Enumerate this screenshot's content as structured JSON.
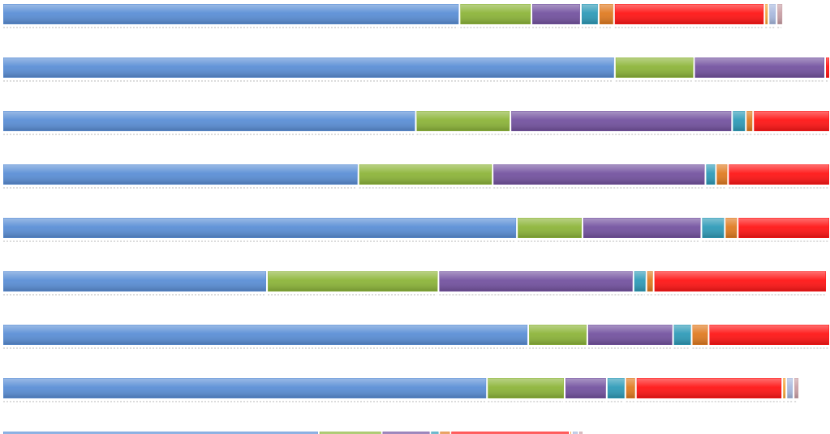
{
  "chart_data": {
    "type": "bar",
    "orientation": "horizontal",
    "stacked": true,
    "title": "",
    "xlabel": "",
    "ylabel": "",
    "xlim": [
      0,
      1023
    ],
    "grid": false,
    "legend": "none",
    "categories": [
      "",
      "",
      "",
      "",
      "",
      "",
      "",
      "",
      ""
    ],
    "series": [
      {
        "color": "#5b8fd6",
        "values": [
          565,
          757,
          511,
          440,
          636,
          327,
          650,
          599,
          391
        ]
      },
      {
        "color": "#8db53a",
        "values": [
          89,
          98,
          117,
          166,
          81,
          212,
          73,
          96,
          78
        ]
      },
      {
        "color": "#7453a0",
        "values": [
          61,
          162,
          274,
          263,
          147,
          241,
          106,
          52,
          60
        ]
      },
      {
        "color": "#2f9bb8",
        "values": [
          22,
          0,
          17,
          13,
          29,
          16,
          23,
          23,
          11
        ]
      },
      {
        "color": "#e07b22",
        "values": [
          19,
          0,
          9,
          15,
          16,
          9,
          21,
          13,
          14
        ]
      },
      {
        "color": "#ff1616",
        "values": [
          186,
          6,
          95,
          126,
          114,
          214,
          150,
          181,
          147
        ]
      },
      {
        "color": "#f3a33b",
        "values": [
          5,
          0,
          0,
          0,
          0,
          0,
          0,
          5,
          3
        ]
      },
      {
        "color": "#a9b9de",
        "values": [
          10,
          0,
          0,
          0,
          0,
          0,
          0,
          9,
          8
        ]
      },
      {
        "color": "#c9a0a6",
        "values": [
          8,
          0,
          0,
          0,
          0,
          0,
          0,
          7,
          6
        ]
      }
    ]
  }
}
